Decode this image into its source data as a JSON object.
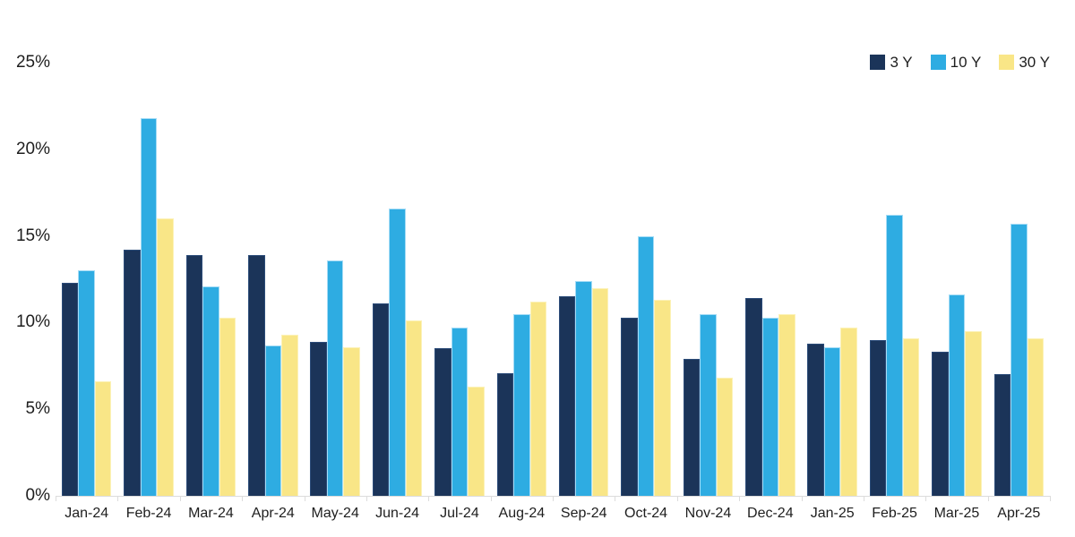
{
  "chart_data": {
    "type": "bar",
    "title": "",
    "categories": [
      "Jan-24",
      "Feb-24",
      "Mar-24",
      "Apr-24",
      "May-24",
      "Jun-24",
      "Jul-24",
      "Aug-24",
      "Sep-24",
      "Oct-24",
      "Nov-24",
      "Dec-24",
      "Jan-25",
      "Feb-25",
      "Mar-25",
      "Apr-25"
    ],
    "series": [
      {
        "name": "3 Y",
        "color": "#1B3459",
        "border_color": "#2C4C79",
        "values": [
          12.3,
          14.2,
          13.9,
          13.9,
          8.9,
          11.1,
          8.5,
          7.1,
          11.5,
          10.3,
          7.9,
          11.4,
          8.8,
          9.0,
          8.3,
          7.0
        ]
      },
      {
        "name": "10 Y",
        "color": "#2EACE2",
        "border_color": "#A5DCF6",
        "values": [
          13.0,
          21.8,
          12.1,
          8.7,
          13.6,
          16.6,
          9.7,
          10.5,
          12.4,
          15.0,
          10.5,
          10.3,
          8.6,
          16.2,
          11.6,
          15.7
        ]
      },
      {
        "name": "30 Y",
        "color": "#F9E687",
        "border_color": "#FCF2B8",
        "values": [
          6.6,
          16.0,
          10.3,
          9.3,
          8.6,
          10.1,
          6.3,
          11.2,
          12.0,
          11.3,
          6.8,
          10.5,
          9.7,
          9.1,
          9.5,
          9.1
        ]
      }
    ],
    "xlabel": "",
    "ylabel": "",
    "ylim": [
      0,
      25
    ],
    "yticks": [
      {
        "value": 0,
        "label": "0%"
      },
      {
        "value": 5,
        "label": "5%"
      },
      {
        "value": 10,
        "label": "10%"
      },
      {
        "value": 15,
        "label": "15%"
      },
      {
        "value": 20,
        "label": "20%"
      },
      {
        "value": 25,
        "label": "25%"
      }
    ],
    "grid": false,
    "legend_position": "top-right",
    "layout": {
      "axis_color": "#DCDCDC",
      "text_color": "#1E1E1E",
      "background": "#FFFFFF"
    }
  }
}
